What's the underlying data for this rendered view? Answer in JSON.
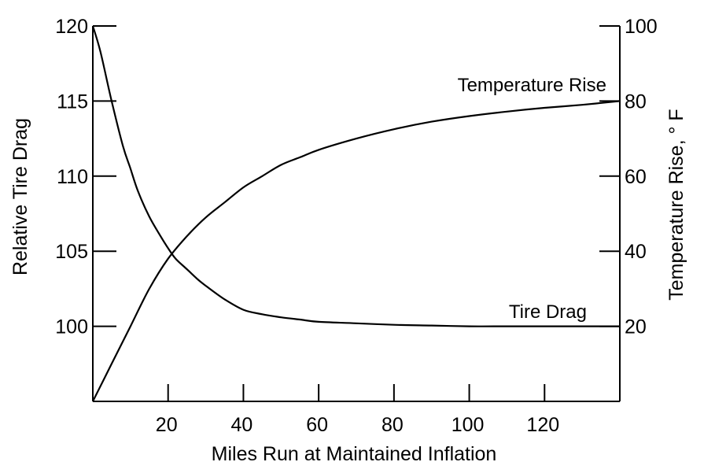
{
  "chart_data": {
    "type": "line",
    "xlabel": "Miles Run at Maintained Inflation",
    "ylabel_left": "Relative Tire Drag",
    "ylabel_right": "Temperature Rise, ° F",
    "xlim": [
      0,
      140
    ],
    "ylim_left": [
      95,
      120
    ],
    "ylim_right": [
      0,
      100
    ],
    "x_ticks": [
      20,
      40,
      60,
      80,
      100,
      120
    ],
    "y_ticks_left": [
      100,
      105,
      110,
      115,
      120
    ],
    "y_ticks_right": [
      20,
      40,
      60,
      80,
      100
    ],
    "grid": false,
    "series": [
      {
        "name": "Tire Drag",
        "axis": "left",
        "x": [
          0,
          2,
          5,
          8,
          10,
          12,
          15,
          18,
          20,
          22,
          25,
          28,
          30,
          35,
          40,
          45,
          50,
          55,
          60,
          70,
          80,
          90,
          100,
          110,
          120,
          130,
          140
        ],
        "y": [
          120,
          118.3,
          115.0,
          112.0,
          110.5,
          109.0,
          107.3,
          106.0,
          105.2,
          104.5,
          103.8,
          103.1,
          102.7,
          101.8,
          101.1,
          100.8,
          100.6,
          100.45,
          100.3,
          100.2,
          100.1,
          100.05,
          100.0,
          100.0,
          100.0,
          100.0,
          100.0
        ]
      },
      {
        "name": "Temperature Rise",
        "axis": "right",
        "x": [
          0,
          5,
          10,
          15,
          20,
          25,
          30,
          35,
          40,
          45,
          50,
          55,
          60,
          70,
          80,
          90,
          100,
          110,
          120,
          130,
          140
        ],
        "y": [
          0,
          10,
          20,
          30,
          38,
          44,
          49,
          53,
          57,
          60,
          63,
          65,
          67,
          70,
          72.5,
          74.5,
          76,
          77.2,
          78.2,
          79,
          80
        ]
      }
    ],
    "annotations": [
      "Temperature Rise",
      "Tire Drag"
    ]
  }
}
